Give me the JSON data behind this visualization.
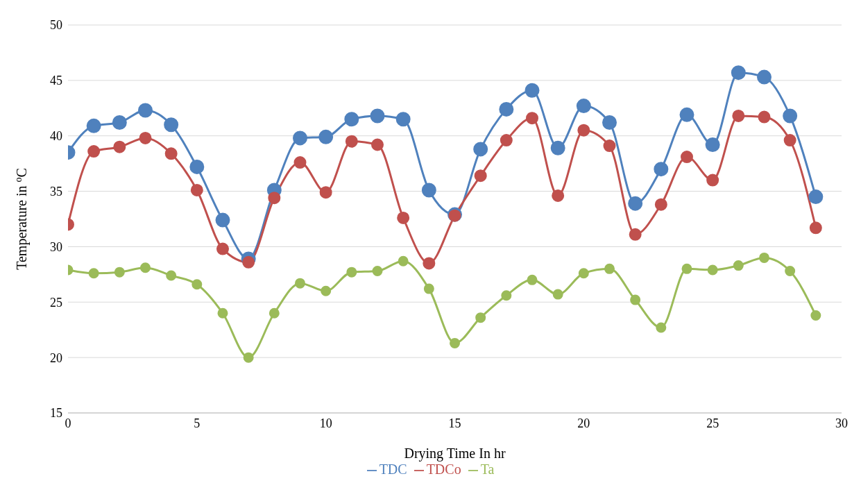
{
  "chart_data": {
    "type": "line",
    "xlabel": "Drying Time In hr",
    "ylabel": "Temperature in $^{o}$C",
    "x": [
      0,
      1,
      2,
      3,
      4,
      5,
      6,
      7,
      8,
      9,
      10,
      11,
      12,
      13,
      14,
      15,
      16,
      17,
      18,
      19,
      20,
      21,
      22,
      23,
      24,
      25,
      26,
      27,
      28,
      29
    ],
    "series": [
      {
        "name": "TDC",
        "color": "#4f81bd",
        "values": [
          38.5,
          40.9,
          41.2,
          42.3,
          41.0,
          37.2,
          32.4,
          28.9,
          35.1,
          39.8,
          39.9,
          41.5,
          41.8,
          41.5,
          35.1,
          32.9,
          38.8,
          42.4,
          44.1,
          38.9,
          42.7,
          41.2,
          33.9,
          37.0,
          41.9,
          39.2,
          45.7,
          45.3,
          41.8,
          34.5
        ]
      },
      {
        "name": "TDCo",
        "color": "#c0504d",
        "values": [
          32.0,
          38.6,
          39.0,
          39.8,
          38.4,
          35.1,
          29.8,
          28.6,
          34.4,
          37.6,
          34.9,
          39.5,
          39.2,
          32.6,
          28.5,
          32.8,
          36.4,
          39.6,
          41.6,
          34.6,
          40.5,
          39.1,
          31.1,
          33.8,
          38.1,
          36.0,
          41.8,
          41.7,
          39.6,
          31.7
        ]
      },
      {
        "name": "Ta",
        "color": "#9bbb59",
        "values": [
          27.9,
          27.6,
          27.7,
          28.1,
          27.4,
          26.6,
          24.0,
          20.0,
          24.0,
          26.7,
          26.0,
          27.7,
          27.8,
          28.7,
          26.2,
          21.3,
          23.6,
          25.6,
          27.0,
          25.7,
          27.6,
          28.0,
          25.2,
          22.7,
          28.0,
          27.9,
          28.3,
          29.0,
          27.8,
          23.8
        ]
      }
    ],
    "xlim": [
      0,
      30
    ],
    "xticks": [
      0,
      5,
      10,
      15,
      20,
      25,
      30
    ],
    "ylim": [
      15,
      50
    ],
    "yticks": [
      15,
      20,
      25,
      30,
      35,
      40,
      45,
      50
    ],
    "grid": "y",
    "legend": "bottom",
    "marker": "circle",
    "line_style": "solid"
  }
}
